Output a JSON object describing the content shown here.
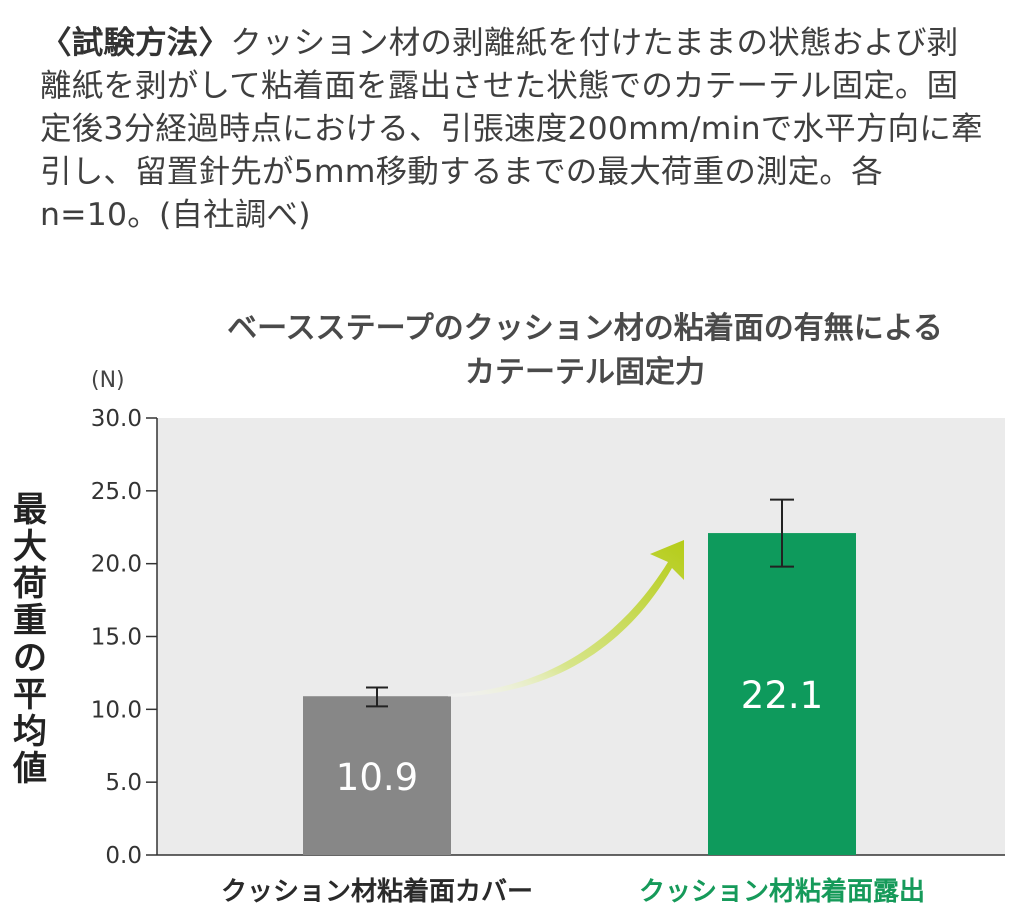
{
  "method": {
    "head": "〈試験方法〉",
    "text": "クッション材の剥離紙を付けたままの状態および剥離紙を剥がして粘着面を露出させた状態でのカテーテル固定。固定後3分経過時点における、引張速度200mm/minで水平方向に牽引し、留置針先が5mm移動するまでの最大荷重の測定。各n=10。(自社調べ)"
  },
  "chart_data": {
    "type": "bar",
    "title_line1": "ベースステープのクッション材の粘着面の有無による",
    "title_line2": "カテーテル固定力",
    "unit": "(N)",
    "ylabel": "最大荷重の平均値",
    "ylim": [
      0,
      30
    ],
    "yticks": [
      "0.0",
      "5.0",
      "10.0",
      "15.0",
      "20.0",
      "25.0",
      "30.0"
    ],
    "categories": [
      "クッション材粘着面カバー",
      "クッション材粘着面露出"
    ],
    "values": [
      10.9,
      22.1
    ],
    "value_labels": [
      "10.9",
      "22.1"
    ],
    "error_low": [
      10.2,
      19.8
    ],
    "error_high": [
      11.5,
      24.4
    ],
    "colors": [
      "#878787",
      "#0e9a5c"
    ],
    "plot_background": "#ebebeb",
    "arrow_color": "#b5cc18",
    "grid": false
  }
}
